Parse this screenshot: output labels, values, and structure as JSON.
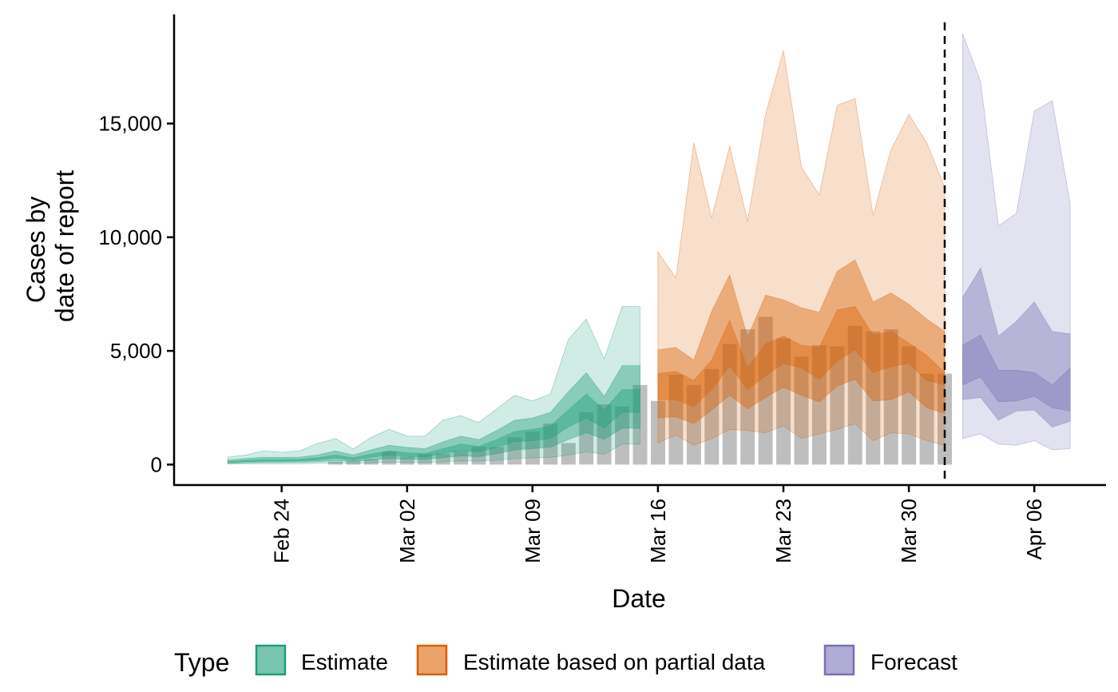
{
  "chart_data": {
    "type": "area",
    "x_type": "date",
    "xlabel": "Date",
    "ylabel": [
      "Cases by",
      "date of report"
    ],
    "xlim": [
      "2020-02-18",
      "2020-04-10"
    ],
    "ylim": [
      -900,
      19800
    ],
    "x_ticks": [
      {
        "date": "2020-02-24",
        "label": "Feb 24"
      },
      {
        "date": "2020-03-02",
        "label": "Mar 02"
      },
      {
        "date": "2020-03-09",
        "label": "Mar 09"
      },
      {
        "date": "2020-03-16",
        "label": "Mar 16"
      },
      {
        "date": "2020-03-23",
        "label": "Mar 23"
      },
      {
        "date": "2020-03-30",
        "label": "Mar 30"
      },
      {
        "date": "2020-04-06",
        "label": "Apr 06"
      }
    ],
    "y_ticks": [
      {
        "value": 0,
        "label": "0"
      },
      {
        "value": 5000,
        "label": "5,000"
      },
      {
        "value": 10000,
        "label": "10,000"
      },
      {
        "value": 15000,
        "label": "15,000"
      }
    ],
    "grid": false,
    "vline_date": "2020-04-01",
    "bar_color": "#bebebe",
    "legend": {
      "title": "Type",
      "position": "bottom",
      "items": [
        {
          "label": "Estimate",
          "fill": "#79c6ae",
          "stroke": "#1b9e77"
        },
        {
          "label": "Estimate based on partial data",
          "fill": "#eca26b",
          "stroke": "#d95f02"
        },
        {
          "label": "Forecast",
          "fill": "#b0acd6",
          "stroke": "#7570b3"
        }
      ]
    },
    "reported_cases": {
      "dates": [
        "2020-02-27",
        "2020-02-28",
        "2020-02-29",
        "2020-03-01",
        "2020-03-02",
        "2020-03-03",
        "2020-03-04",
        "2020-03-05",
        "2020-03-06",
        "2020-03-07",
        "2020-03-08",
        "2020-03-09",
        "2020-03-10",
        "2020-03-11",
        "2020-03-12",
        "2020-03-13",
        "2020-03-14",
        "2020-03-15",
        "2020-03-16",
        "2020-03-17",
        "2020-03-18",
        "2020-03-19",
        "2020-03-20",
        "2020-03-21",
        "2020-03-22",
        "2020-03-23",
        "2020-03-24",
        "2020-03-25",
        "2020-03-26",
        "2020-03-27",
        "2020-03-28",
        "2020-03-29",
        "2020-03-30",
        "2020-03-31",
        "2020-04-01"
      ],
      "values": [
        140,
        180,
        240,
        570,
        350,
        460,
        480,
        600,
        780,
        770,
        1200,
        1450,
        1800,
        950,
        2300,
        2650,
        2550,
        3500,
        2800,
        3950,
        3500,
        4200,
        5300,
        5950,
        6500,
        5550,
        4750,
        5250,
        5200,
        6100,
        5850,
        5950,
        5200,
        4000,
        4000
      ]
    },
    "series": [
      {
        "name": "Estimate",
        "color": "#1b9e77",
        "dates": [
          "2020-02-21",
          "2020-02-22",
          "2020-02-23",
          "2020-02-24",
          "2020-02-25",
          "2020-02-26",
          "2020-02-27",
          "2020-02-28",
          "2020-02-29",
          "2020-03-01",
          "2020-03-02",
          "2020-03-03",
          "2020-03-04",
          "2020-03-05",
          "2020-03-06",
          "2020-03-07",
          "2020-03-08",
          "2020-03-09",
          "2020-03-10",
          "2020-03-11",
          "2020-03-12",
          "2020-03-13",
          "2020-03-14",
          "2020-03-15"
        ],
        "upper90": [
          330,
          420,
          610,
          540,
          600,
          920,
          1150,
          680,
          1200,
          1550,
          1250,
          1250,
          1950,
          2150,
          1850,
          2450,
          3050,
          2800,
          3100,
          5500,
          6400,
          4650,
          6950,
          6950
        ],
        "upper50": [
          200,
          270,
          320,
          320,
          330,
          420,
          600,
          420,
          650,
          850,
          760,
          700,
          1000,
          1250,
          1100,
          1500,
          1950,
          2050,
          2300,
          3200,
          4050,
          3000,
          4350,
          4350
        ],
        "upper20": [
          130,
          180,
          220,
          220,
          230,
          300,
          420,
          300,
          460,
          600,
          520,
          480,
          700,
          900,
          800,
          1100,
          1450,
          1550,
          1700,
          2400,
          3100,
          2400,
          3300,
          3300
        ],
        "lower20": [
          90,
          130,
          150,
          150,
          160,
          200,
          290,
          210,
          320,
          420,
          360,
          340,
          490,
          620,
          560,
          760,
          1000,
          1050,
          1150,
          1650,
          2050,
          1600,
          2300,
          2300
        ],
        "lower50": [
          50,
          80,
          90,
          90,
          100,
          120,
          180,
          140,
          200,
          260,
          230,
          220,
          300,
          380,
          350,
          470,
          640,
          700,
          760,
          1100,
          1400,
          1100,
          1600,
          1600
        ],
        "lower90": [
          20,
          30,
          40,
          40,
          40,
          50,
          70,
          50,
          80,
          100,
          90,
          90,
          120,
          160,
          150,
          190,
          260,
          300,
          320,
          420,
          560,
          450,
          900,
          900
        ]
      },
      {
        "name": "Estimate based on partial data",
        "color": "#d95f02",
        "dates": [
          "2020-03-16",
          "2020-03-17",
          "2020-03-18",
          "2020-03-19",
          "2020-03-20",
          "2020-03-21",
          "2020-03-22",
          "2020-03-23",
          "2020-03-24",
          "2020-03-25",
          "2020-03-26",
          "2020-03-27",
          "2020-03-28",
          "2020-03-29",
          "2020-03-30",
          "2020-03-31",
          "2020-04-01"
        ],
        "upper90": [
          9350,
          8200,
          14150,
          10850,
          14000,
          10700,
          15400,
          18200,
          13100,
          11850,
          15800,
          16100,
          10950,
          13850,
          15400,
          14150,
          12200
        ],
        "upper50": [
          5050,
          5150,
          4600,
          6750,
          8350,
          5600,
          7450,
          7250,
          6900,
          6700,
          8500,
          9000,
          7150,
          7550,
          7050,
          6400,
          5850
        ],
        "upper20": [
          4000,
          4100,
          3700,
          4600,
          6350,
          4250,
          5300,
          5650,
          5250,
          5150,
          6800,
          6950,
          5700,
          5850,
          5350,
          4800,
          4050
        ],
        "lower20": [
          2850,
          2850,
          2550,
          3300,
          4350,
          3300,
          3900,
          4450,
          4250,
          3750,
          4550,
          5050,
          4050,
          4300,
          4450,
          3700,
          3500
        ],
        "lower50": [
          2050,
          2100,
          1800,
          2400,
          3050,
          2450,
          2950,
          3400,
          3050,
          2750,
          3450,
          3750,
          2800,
          2850,
          3200,
          2500,
          2250
        ],
        "lower90": [
          950,
          1300,
          850,
          1150,
          1550,
          1500,
          1400,
          1700,
          1150,
          1350,
          1550,
          1800,
          1050,
          1400,
          1350,
          1050,
          850
        ]
      },
      {
        "name": "Forecast",
        "color": "#7570b3",
        "dates": [
          "2020-04-02",
          "2020-04-03",
          "2020-04-04",
          "2020-04-05",
          "2020-04-06",
          "2020-04-07",
          "2020-04-08"
        ],
        "upper90": [
          18950,
          16850,
          10500,
          11050,
          15550,
          16000,
          11450
        ],
        "upper50": [
          7350,
          8650,
          5650,
          6300,
          7150,
          5850,
          5750
        ],
        "upper20": [
          5250,
          5700,
          4150,
          4150,
          4050,
          3500,
          4250
        ],
        "lower20": [
          3500,
          3850,
          2750,
          2800,
          3000,
          2500,
          2350
        ],
        "lower50": [
          2850,
          2950,
          1950,
          2350,
          2400,
          1650,
          1900
        ],
        "lower90": [
          1150,
          1350,
          900,
          850,
          1050,
          650,
          700
        ]
      }
    ]
  }
}
